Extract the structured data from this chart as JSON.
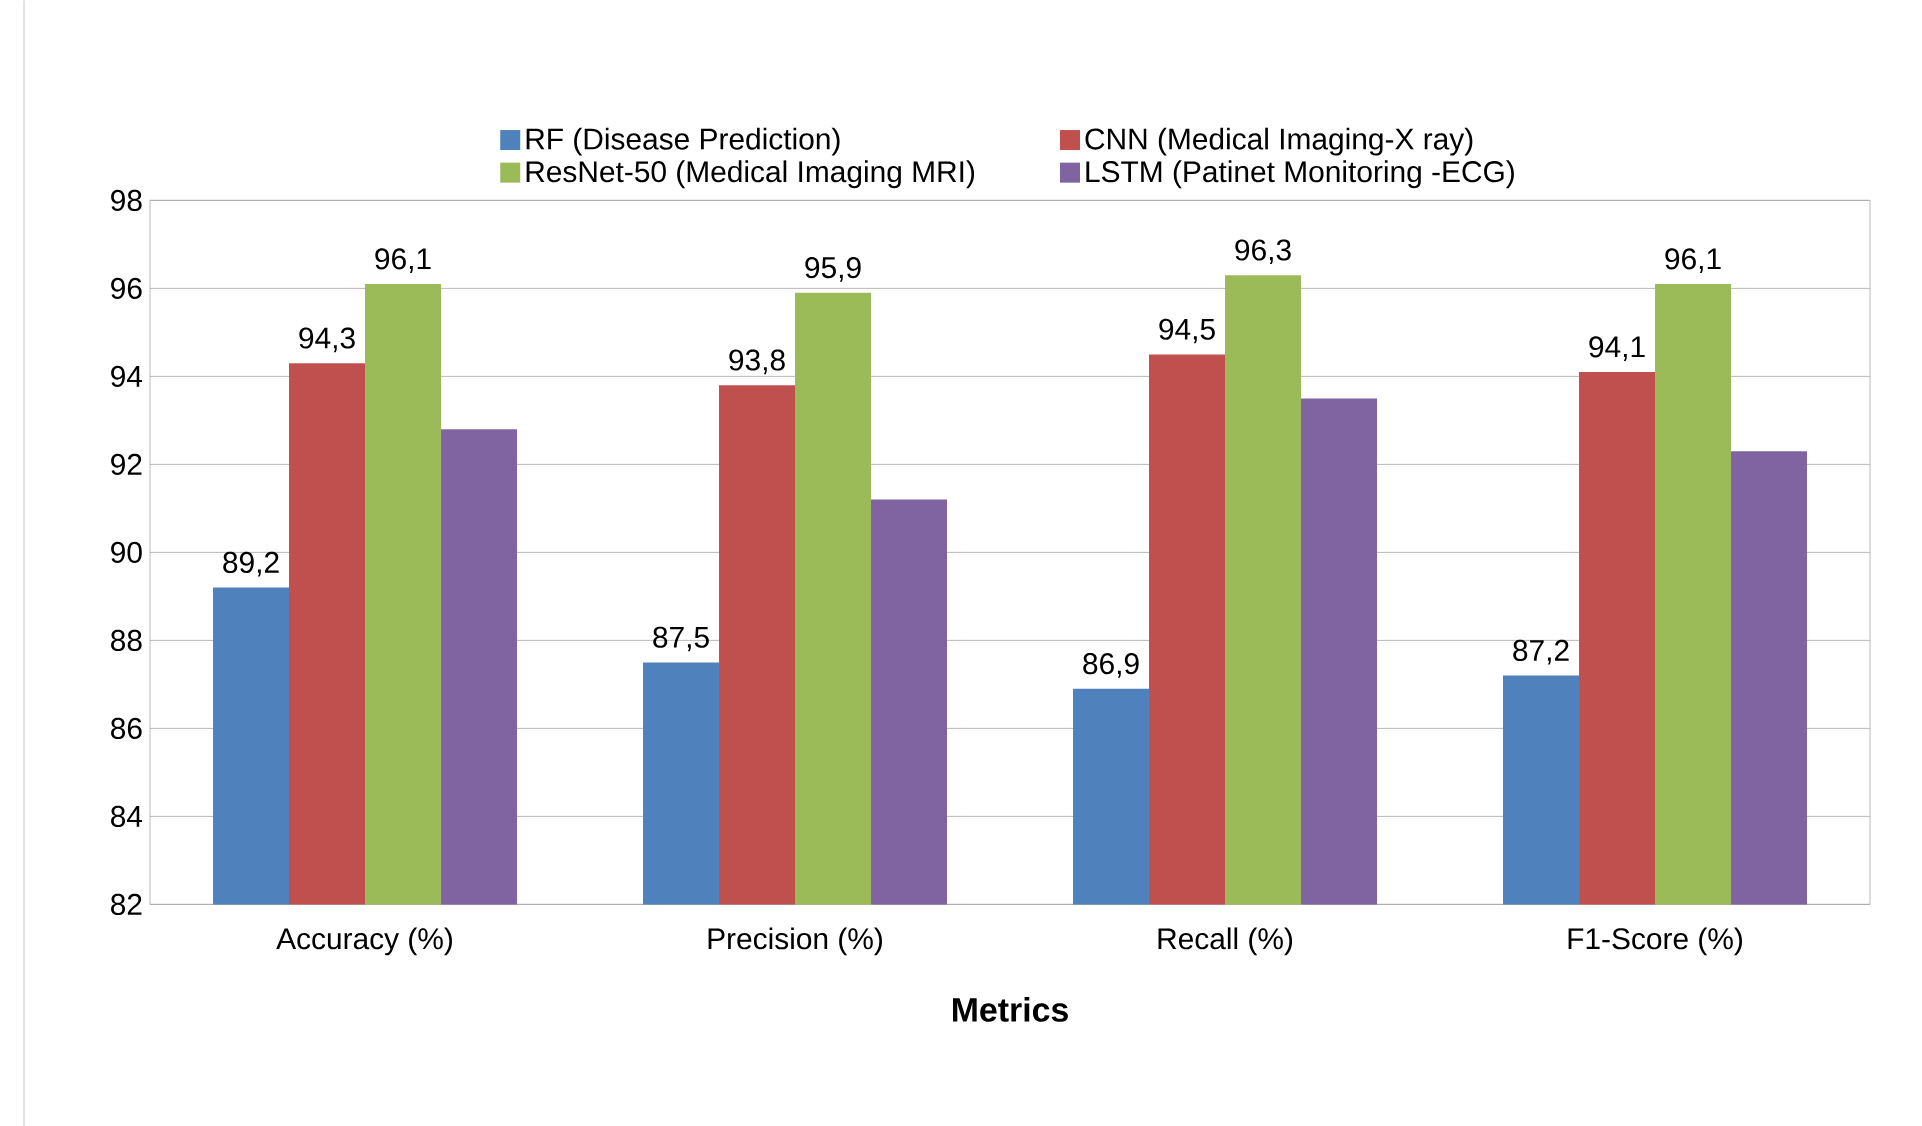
{
  "chart_data": {
    "type": "bar",
    "xlabel": "Metrics",
    "categories": [
      "Accuracy (%)",
      "Precision (%)",
      "Recall (%)",
      "F1-Score (%)"
    ],
    "series": [
      {
        "name": "RF (Disease Prediction)",
        "color": "#4f81bd",
        "values": [
          89.2,
          87.5,
          86.9,
          87.2
        ],
        "value_labels": [
          "89,2",
          "87,5",
          "86,9",
          "87,2"
        ]
      },
      {
        "name": "CNN (Medical Imaging-X ray)",
        "color": "#c0504d",
        "values": [
          94.3,
          93.8,
          94.5,
          94.1
        ],
        "value_labels": [
          "94,3",
          "93,8",
          "94,5",
          "94,1"
        ]
      },
      {
        "name": "ResNet-50 (Medical Imaging MRI)",
        "color": "#9bbb59",
        "values": [
          96.1,
          95.9,
          96.3,
          96.1
        ],
        "value_labels": [
          "96,1",
          "95,9",
          "96,3",
          "96,1"
        ]
      },
      {
        "name": "LSTM (Patinet Monitoring -ECG)",
        "color": "#8064a2",
        "values": [
          92.8,
          91.2,
          93.5,
          92.3
        ],
        "value_labels": [
          null,
          null,
          null,
          null
        ]
      }
    ],
    "ylim": [
      82,
      98
    ],
    "yticks": [
      82,
      84,
      86,
      88,
      90,
      92,
      94,
      96,
      98
    ],
    "grid": "y",
    "legend": "top"
  }
}
